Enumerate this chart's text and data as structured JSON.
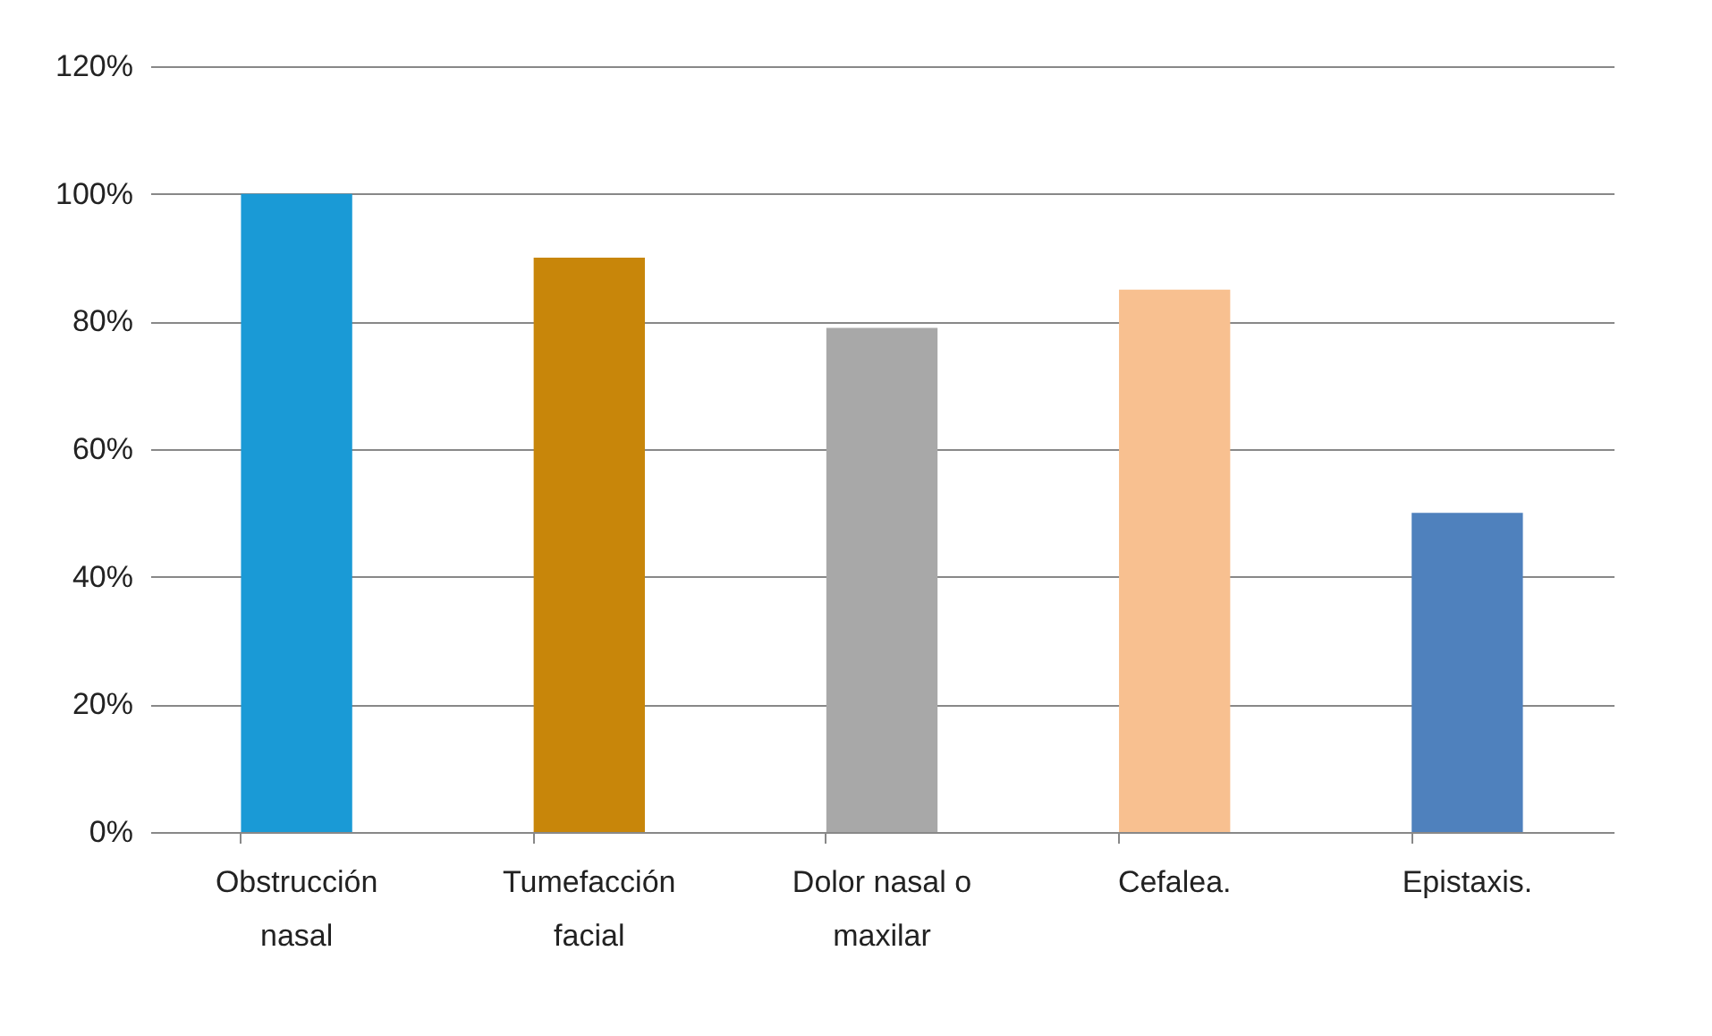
{
  "chart_data": {
    "type": "bar",
    "categories": [
      "Obstrucción nasal",
      "Tumefacción facial",
      "Dolor nasal o maxilar",
      "Cefalea.",
      "Epistaxis."
    ],
    "values": [
      100,
      90,
      79,
      85,
      50
    ],
    "colors": [
      "#1a9ad6",
      "#c8860a",
      "#a8a8a8",
      "#f8c090",
      "#4f81bd"
    ],
    "ylim": [
      0,
      120
    ],
    "yticks": [
      {
        "value": 0,
        "label": "0%"
      },
      {
        "value": 20,
        "label": "20%"
      },
      {
        "value": 40,
        "label": "40%"
      },
      {
        "value": 60,
        "label": "60%"
      },
      {
        "value": 80,
        "label": "80%"
      },
      {
        "value": 100,
        "label": "100%"
      },
      {
        "value": 120,
        "label": "120%"
      }
    ],
    "grid": "y"
  }
}
